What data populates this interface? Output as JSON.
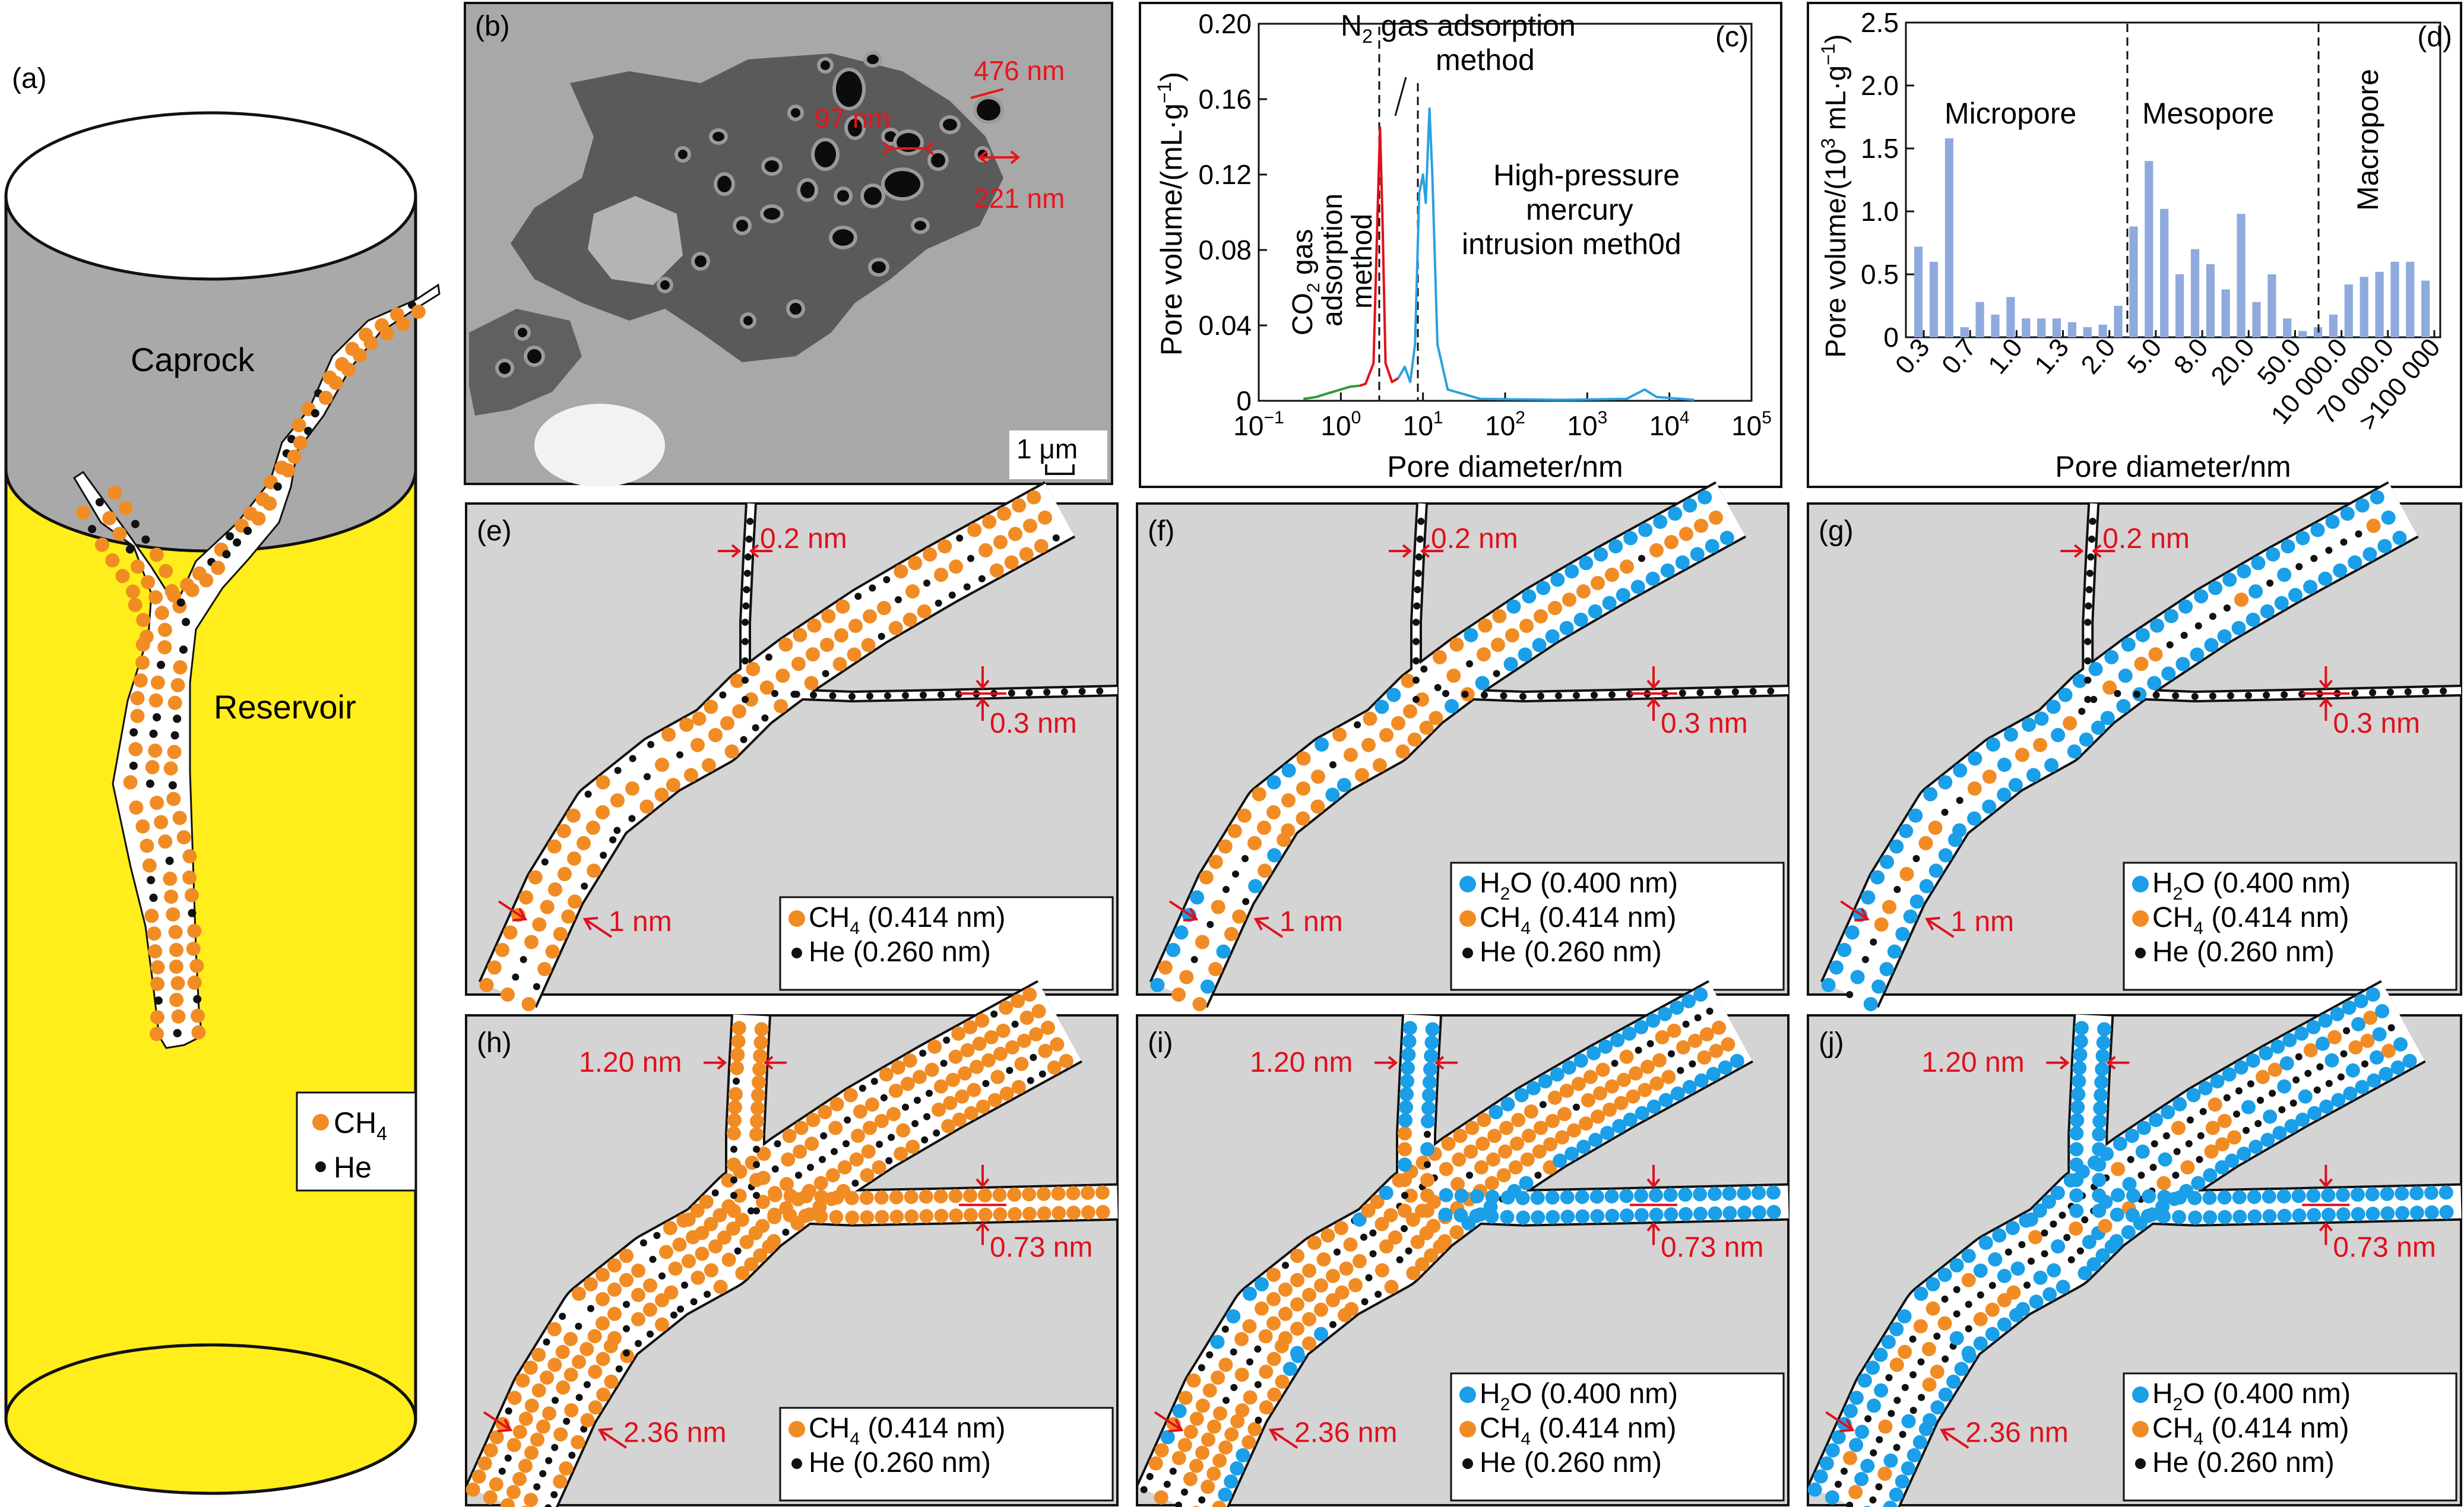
{
  "colors": {
    "ch4": "#f18c24",
    "he": "#111111",
    "h2o": "#1a9fe8",
    "red": "#e0101c",
    "sem_red": "#e8151b",
    "caprock": "#a9a9a9",
    "reservoir": "#ffee1c",
    "panel_bg": "#d4d4d4",
    "pore_bg": "#ffffff",
    "bar": "#8faadc",
    "green": "#2e9a2e",
    "blue": "#2aa0e0"
  },
  "panel_a": {
    "label": "(a)",
    "caprock": "Caprock",
    "reservoir": "Reservoir",
    "legend": {
      "ch4": "CH",
      "ch4_sub": "4",
      "he": "He"
    }
  },
  "panel_b": {
    "label": "(b)",
    "m1": "476 nm",
    "m2": "97 nm",
    "m3": "221 nm",
    "scale": "1 μm"
  },
  "panel_c": {
    "label": "(c)",
    "annot_n2_1": "N",
    "annot_n2_sub": "2",
    "annot_n2_2": " gas adsorption",
    "annot_n2_3": "method",
    "annot_co2_1": "CO",
    "annot_co2_sub": "2",
    "annot_co2_2": " gas",
    "annot_co2_3": "adsorption",
    "annot_co2_4": "method",
    "annot_hg_1": "High-pressure",
    "annot_hg_2": "mercury",
    "annot_hg_3": "intrusion meth0d",
    "chart_data": {
      "type": "line",
      "xlabel": "Pore diameter/nm",
      "ylabel_main": "Pore volume/(mL·g",
      "ylabel_sup": "−1",
      "ylabel_end": ")",
      "xscale": "log",
      "xlim": [
        0.1,
        100000
      ],
      "ylim": [
        0,
        0.2
      ],
      "yticks": [
        "0",
        "0.04",
        "0.08",
        "0.12",
        "0.16",
        "0.20"
      ],
      "xticks": [
        {
          "b": "10",
          "e": "−1"
        },
        {
          "b": "10",
          "e": "0"
        },
        {
          "b": "10",
          "e": "1"
        },
        {
          "b": "10",
          "e": "2"
        },
        {
          "b": "10",
          "e": "3"
        },
        {
          "b": "10",
          "e": "4"
        },
        {
          "b": "10",
          "e": "5"
        }
      ],
      "series": [
        {
          "method": "CO2",
          "color": "#2e9a2e",
          "points": [
            [
              0.35,
              0.001
            ],
            [
              0.5,
              0.002
            ],
            [
              0.7,
              0.004
            ],
            [
              1.0,
              0.006
            ],
            [
              1.3,
              0.0075
            ],
            [
              1.7,
              0.008
            ]
          ]
        },
        {
          "method": "N2",
          "color": "#e0101c",
          "points": [
            [
              1.7,
              0.008
            ],
            [
              2.0,
              0.009
            ],
            [
              2.5,
              0.02
            ],
            [
              2.8,
              0.1
            ],
            [
              3.0,
              0.145
            ],
            [
              3.2,
              0.1
            ],
            [
              3.5,
              0.02
            ],
            [
              4.2,
              0.01
            ],
            [
              5.0,
              0.012
            ]
          ]
        },
        {
          "method": "Hg",
          "color": "#2aa0e0",
          "points": [
            [
              5.0,
              0.012
            ],
            [
              6.0,
              0.018
            ],
            [
              7.0,
              0.01
            ],
            [
              8.0,
              0.03
            ],
            [
              9.0,
              0.11
            ],
            [
              10.0,
              0.12
            ],
            [
              10.8,
              0.105
            ],
            [
              12.0,
              0.155
            ],
            [
              13.0,
              0.12
            ],
            [
              15.0,
              0.03
            ],
            [
              20.0,
              0.006
            ],
            [
              50.0,
              0.001
            ],
            [
              500,
              0.0005
            ],
            [
              3000,
              0.001
            ],
            [
              5000,
              0.006
            ],
            [
              7000,
              0.002
            ],
            [
              20000,
              0.0005
            ]
          ]
        }
      ]
    }
  },
  "panel_d": {
    "label": "(d)",
    "region1": "Micropore",
    "region2": "Mesopore",
    "region3": "Macropore",
    "chart_data": {
      "type": "bar",
      "xlabel": "Pore diameter/nm",
      "ylabel_main": "Pore volume/(10",
      "ylabel_sup": "3",
      "ylabel_mid": " mL·g",
      "ylabel_sup2": "−1",
      "ylabel_end": ")",
      "ylim": [
        0,
        2.5
      ],
      "yticks": [
        "0",
        "0.5",
        "1.0",
        "1.5",
        "2.0",
        "2.5"
      ],
      "xticklabels": [
        "0.3",
        "0.7",
        "1.0",
        "1.3",
        "2.0",
        "5.0",
        "8.0",
        "20.0",
        "50.0",
        "10 000.0",
        "70 000.0",
        ">100 000"
      ],
      "values": [
        0.72,
        0.6,
        1.58,
        0.08,
        0.28,
        0.18,
        0.32,
        0.15,
        0.15,
        0.15,
        0.12,
        0.08,
        0.1,
        0.25,
        0.88,
        1.4,
        1.02,
        0.5,
        0.7,
        0.58,
        0.38,
        0.98,
        0.28,
        0.5,
        0.15,
        0.05,
        0.08,
        0.18,
        0.42,
        0.48,
        0.52,
        0.6,
        0.6,
        0.45
      ]
    }
  },
  "panels": {
    "e": {
      "label": "(e)",
      "w_top": "0.2 nm",
      "w_right": "0.3 nm",
      "w_bottom": "1 nm",
      "legend": [
        {
          "k": "ch4",
          "t": "CH",
          "s": "4",
          "r": " (0.414 nm)"
        },
        {
          "k": "he",
          "t": "He (0.260 nm)",
          "s": "",
          "r": ""
        }
      ]
    },
    "f": {
      "label": "(f)",
      "w_top": "0.2 nm",
      "w_right": "0.3 nm",
      "w_bottom": "1 nm",
      "legend": [
        {
          "k": "h2o",
          "t": "H",
          "s": "2",
          "r": "O (0.400 nm)"
        },
        {
          "k": "ch4",
          "t": "CH",
          "s": "4",
          "r": " (0.414 nm)"
        },
        {
          "k": "he",
          "t": "He (0.260 nm)",
          "s": "",
          "r": ""
        }
      ]
    },
    "g": {
      "label": "(g)",
      "w_top": "0.2 nm",
      "w_right": "0.3 nm",
      "w_bottom": "1 nm",
      "legend": [
        {
          "k": "h2o",
          "t": "H",
          "s": "2",
          "r": "O (0.400 nm)"
        },
        {
          "k": "ch4",
          "t": "CH",
          "s": "4",
          "r": " (0.414 nm)"
        },
        {
          "k": "he",
          "t": "He (0.260 nm)",
          "s": "",
          "r": ""
        }
      ]
    },
    "h": {
      "label": "(h)",
      "w_top": "1.20 nm",
      "w_right": "0.73 nm",
      "w_bottom": "2.36 nm",
      "legend": [
        {
          "k": "ch4",
          "t": "CH",
          "s": "4",
          "r": " (0.414 nm)"
        },
        {
          "k": "he",
          "t": "He (0.260 nm)",
          "s": "",
          "r": ""
        }
      ]
    },
    "i": {
      "label": "(i)",
      "w_top": "1.20 nm",
      "w_right": "0.73 nm",
      "w_bottom": "2.36 nm",
      "legend": [
        {
          "k": "h2o",
          "t": "H",
          "s": "2",
          "r": "O (0.400 nm)"
        },
        {
          "k": "ch4",
          "t": "CH",
          "s": "4",
          "r": " (0.414 nm)"
        },
        {
          "k": "he",
          "t": "He (0.260 nm)",
          "s": "",
          "r": ""
        }
      ]
    },
    "j": {
      "label": "(j)",
      "w_top": "1.20 nm",
      "w_right": "0.73 nm",
      "w_bottom": "2.36 nm",
      "legend": [
        {
          "k": "h2o",
          "t": "H",
          "s": "2",
          "r": "O (0.400 nm)"
        },
        {
          "k": "ch4",
          "t": "CH",
          "s": "4",
          "r": " (0.414 nm)"
        },
        {
          "k": "he",
          "t": "He (0.260 nm)",
          "s": "",
          "r": ""
        }
      ]
    }
  }
}
